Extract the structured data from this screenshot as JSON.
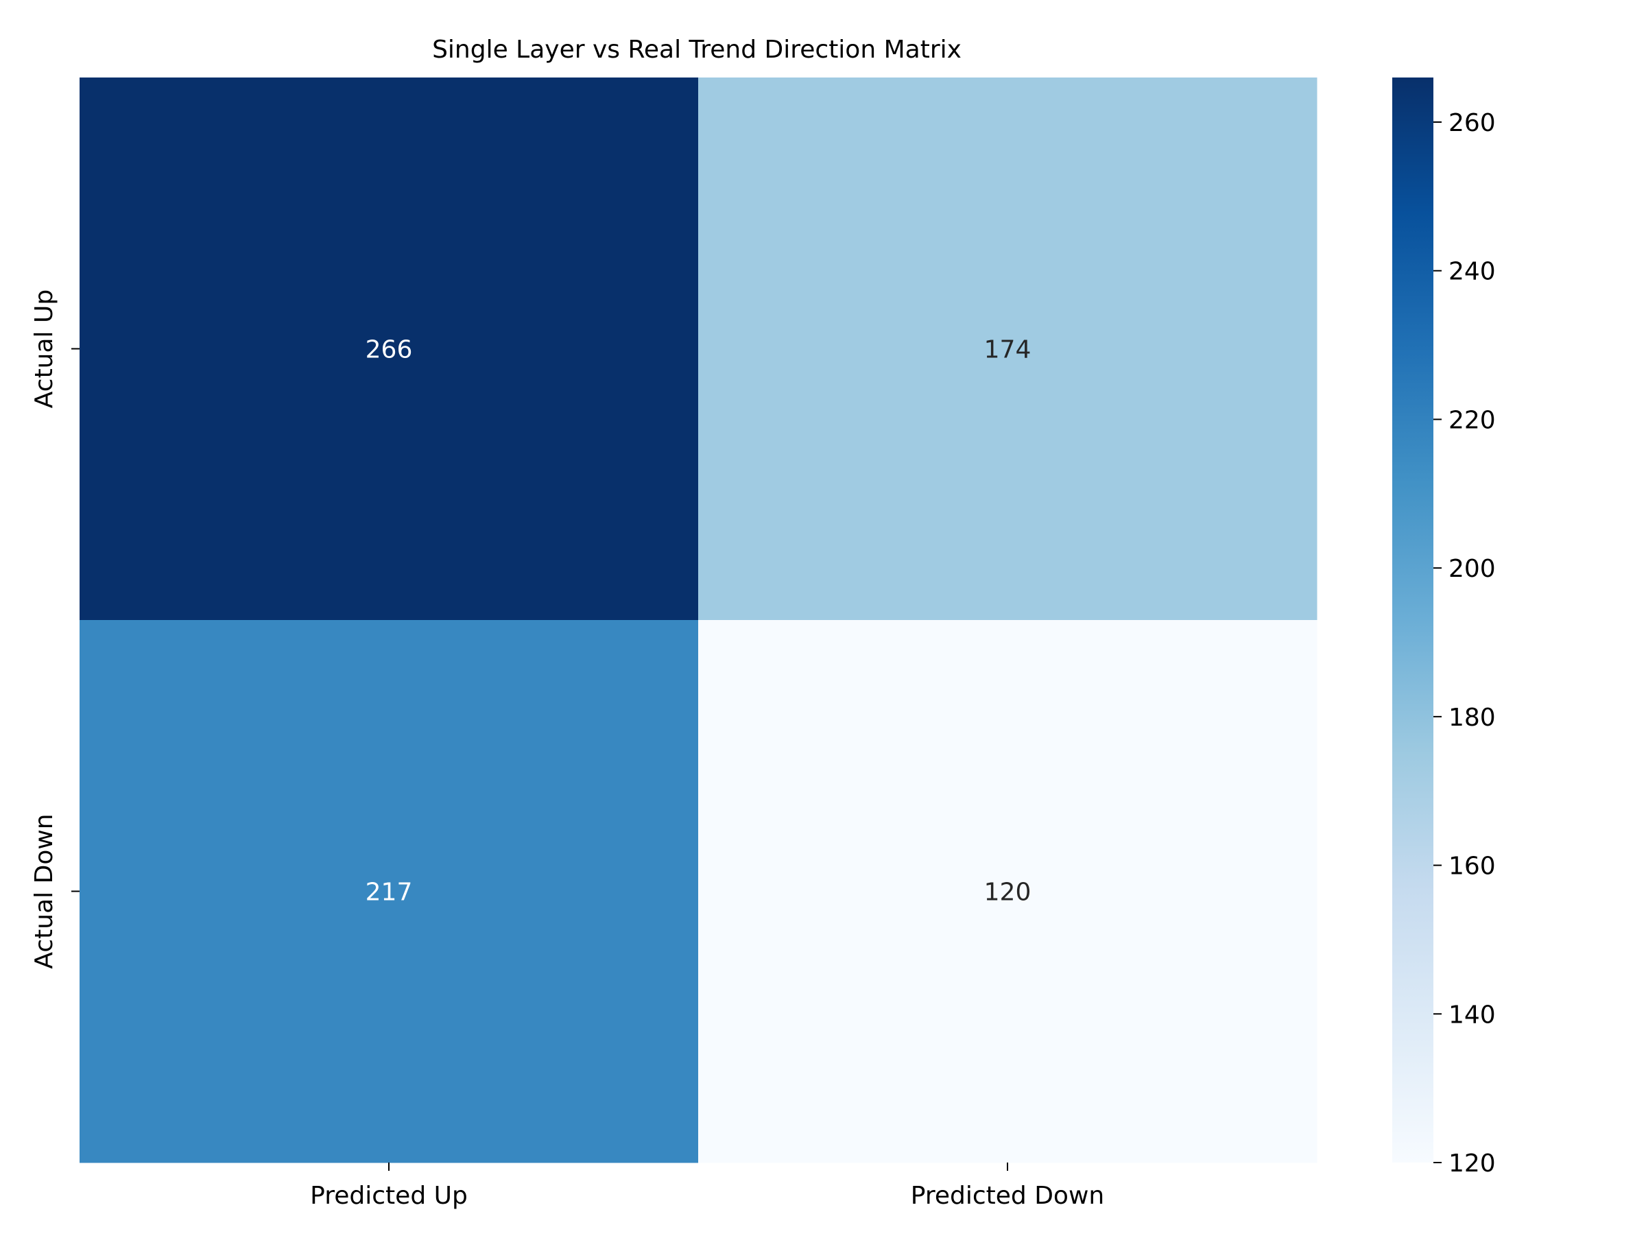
{
  "chart_data": {
    "type": "heatmap",
    "title": "Single Layer vs Real Trend Direction Matrix",
    "x_categories": [
      "Predicted Up",
      "Predicted Down"
    ],
    "y_categories": [
      "Actual Up",
      "Actual Down"
    ],
    "values": [
      [
        266,
        174
      ],
      [
        217,
        120
      ]
    ],
    "colormap": "Blues",
    "colorbar": {
      "range": [
        120,
        266
      ],
      "ticks": [
        120,
        140,
        160,
        180,
        200,
        220,
        240,
        260
      ]
    },
    "grid": false,
    "colors": {
      "cell_low": "#f7fbff",
      "cell_high": "#08306b",
      "text_light": "#ffffff",
      "text_dark": "#262626"
    }
  }
}
